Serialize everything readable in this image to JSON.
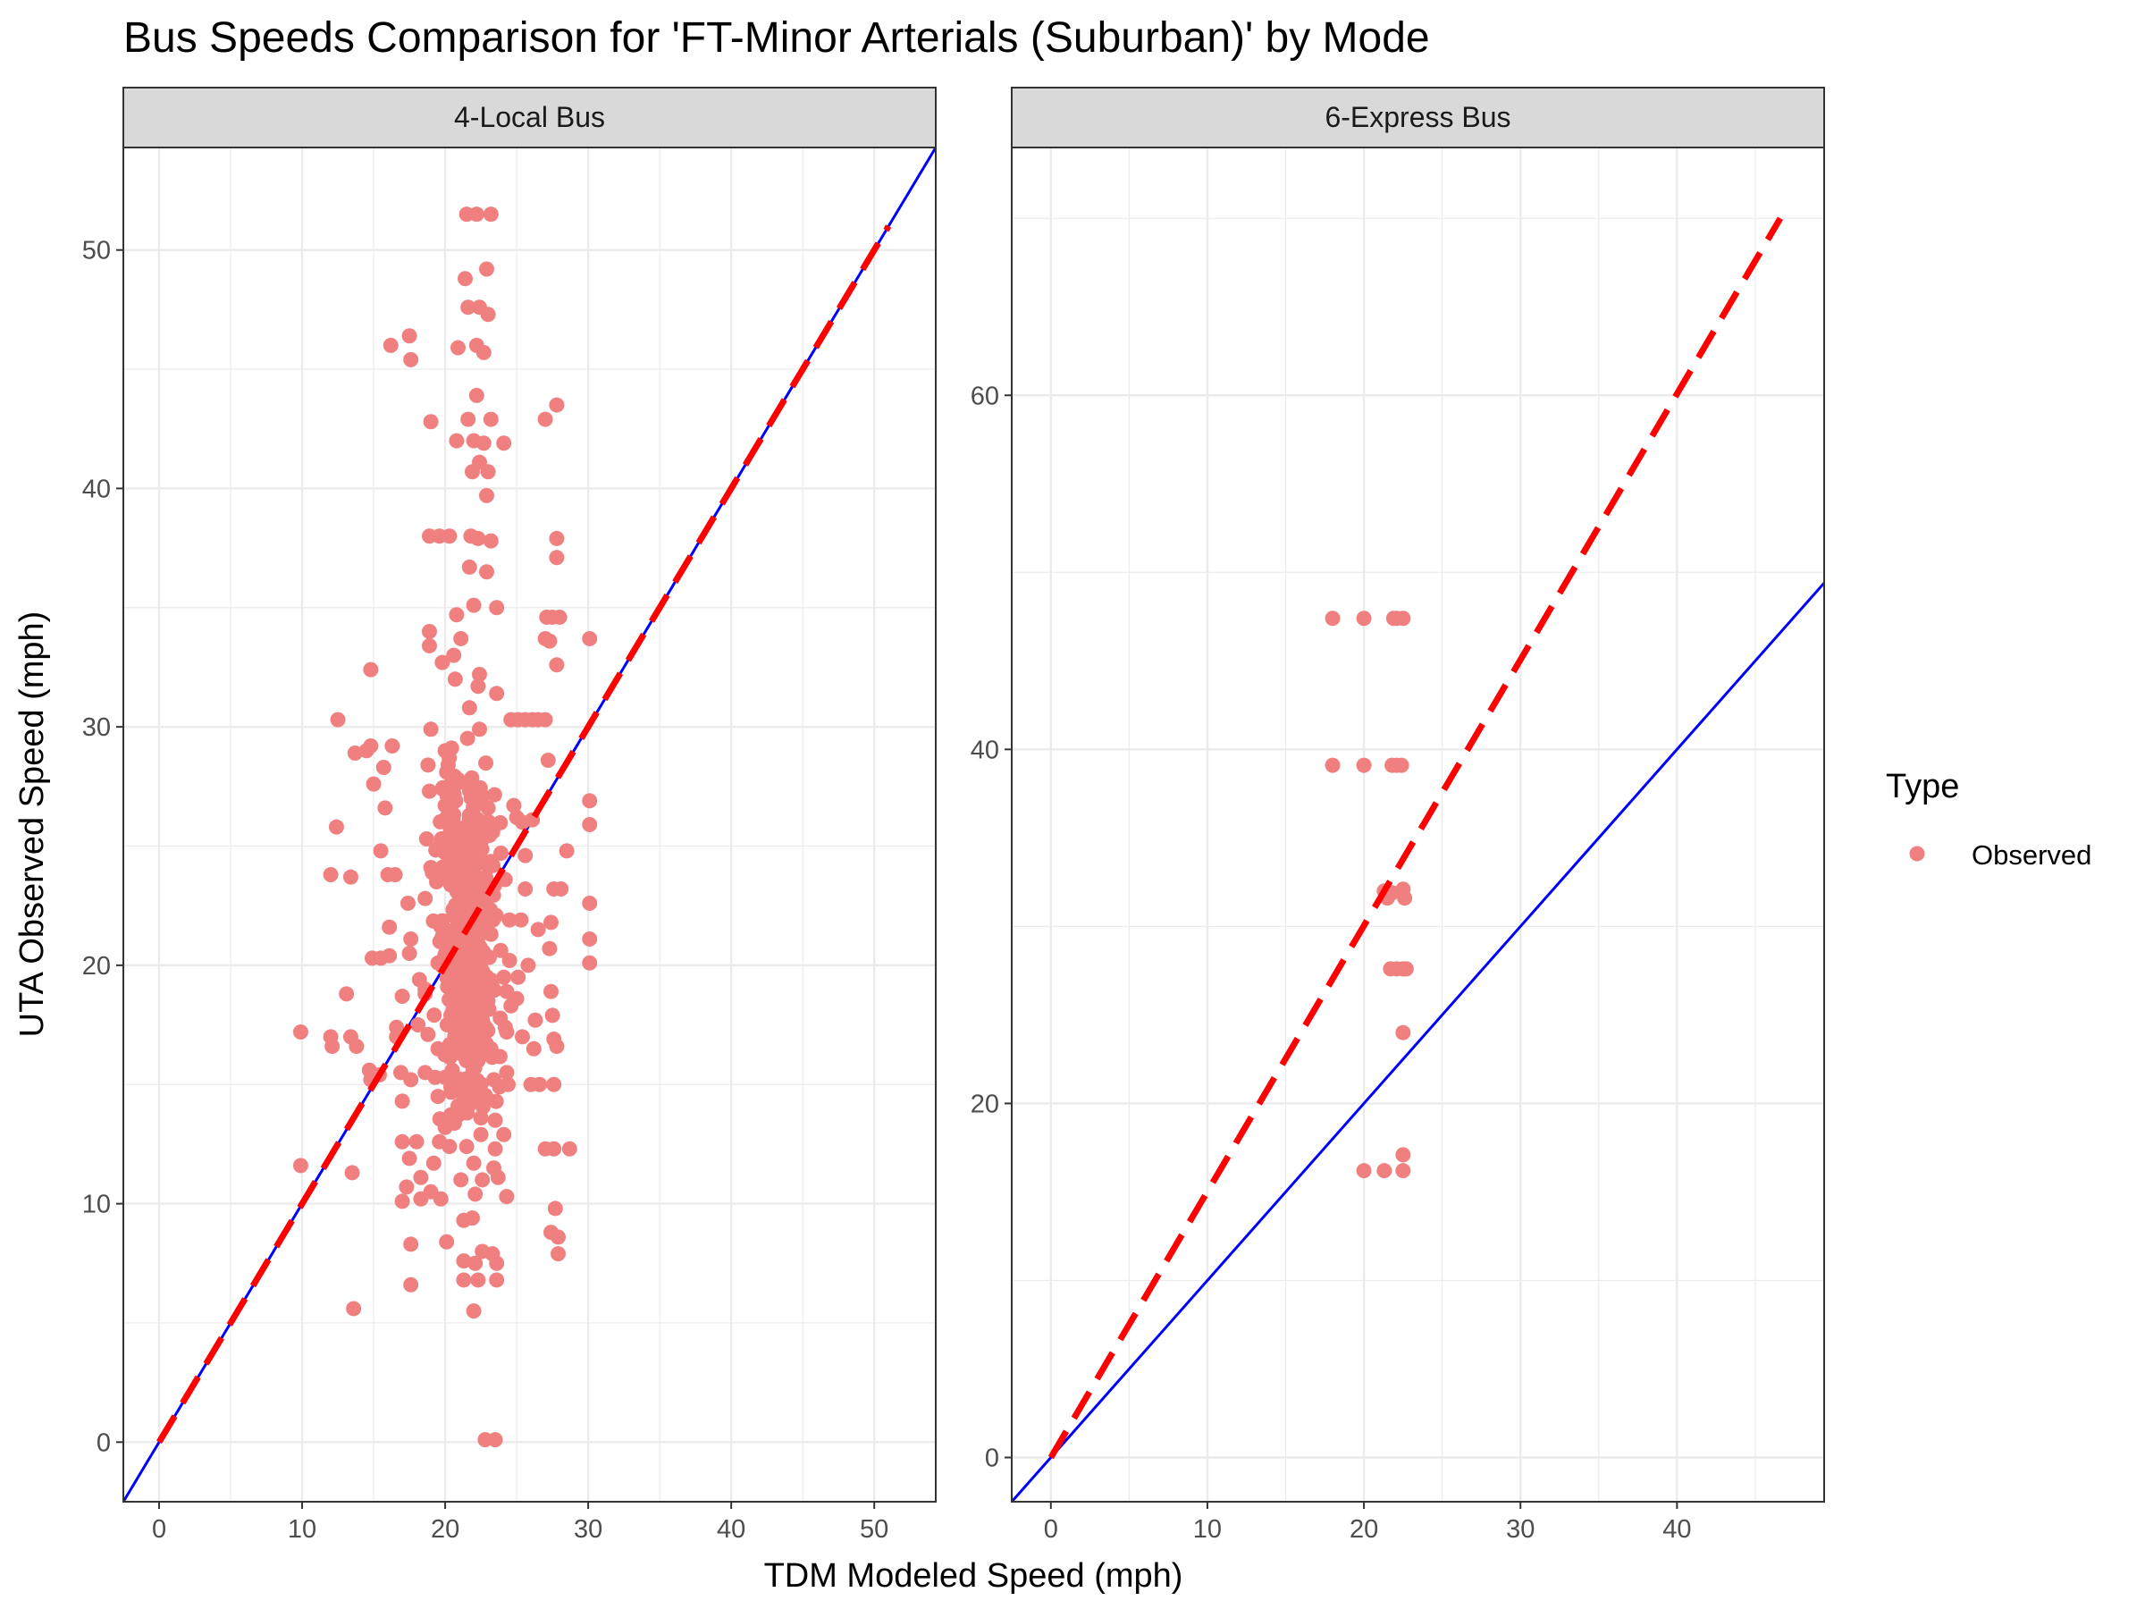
{
  "chart_data": {
    "type": "scatter",
    "title": "Bus Speeds Comparison for 'FT-Minor Arterials (Suburban)' by Mode",
    "xlabel": "TDM Modeled Speed (mph)",
    "ylabel": "UTA Observed Speed (mph)",
    "legend": {
      "title": "Type",
      "placement": "right",
      "entries": [
        "Observed"
      ]
    },
    "colors": {
      "point": "#F08080",
      "identity_line": "#0000FF",
      "fit_line": "#FF0000",
      "strip_bg": "#D9D9D9",
      "grid": "#EBEBEB",
      "panel_border": "#333333"
    },
    "grid": true,
    "panels": [
      {
        "strip": "4-Local Bus",
        "xlim": [
          -2.5,
          54.3
        ],
        "ylim": [
          -2.5,
          54.3
        ],
        "x_ticks": [
          0,
          10,
          20,
          30,
          40,
          50
        ],
        "x_tick_labels": [
          "0",
          "10",
          "20",
          "30",
          "40",
          "50"
        ],
        "y_ticks": [
          0,
          10,
          20,
          30,
          40,
          50
        ],
        "y_tick_labels": [
          "0",
          "10",
          "20",
          "30",
          "40",
          "50"
        ],
        "identity_line": {
          "x": [
            -2.5,
            54.3
          ],
          "y": [
            -2.5,
            54.3
          ]
        },
        "fit_line": {
          "x": [
            0,
            51
          ],
          "y": [
            0,
            51
          ]
        },
        "points": [
          [
            21.5,
            51.5
          ],
          [
            22.2,
            51.5
          ],
          [
            23.2,
            51.5
          ],
          [
            21.4,
            48.8
          ],
          [
            22.9,
            49.2
          ],
          [
            21.6,
            47.6
          ],
          [
            22.4,
            47.6
          ],
          [
            23.0,
            47.3
          ],
          [
            16.2,
            46.0
          ],
          [
            17.5,
            46.4
          ],
          [
            17.6,
            45.4
          ],
          [
            20.9,
            45.9
          ],
          [
            22.2,
            46.0
          ],
          [
            22.7,
            45.7
          ],
          [
            22.2,
            43.9
          ],
          [
            21.6,
            42.9
          ],
          [
            23.2,
            42.9
          ],
          [
            19.0,
            42.8
          ],
          [
            27.0,
            42.9
          ],
          [
            27.8,
            43.5
          ],
          [
            20.8,
            42.0
          ],
          [
            22.0,
            42.0
          ],
          [
            22.7,
            41.9
          ],
          [
            24.1,
            41.9
          ],
          [
            22.4,
            41.1
          ],
          [
            21.9,
            40.7
          ],
          [
            23.0,
            40.7
          ],
          [
            22.9,
            39.7
          ],
          [
            18.9,
            38.0
          ],
          [
            19.6,
            38.0
          ],
          [
            20.3,
            38.0
          ],
          [
            21.8,
            38.0
          ],
          [
            22.3,
            37.9
          ],
          [
            23.2,
            37.8
          ],
          [
            27.8,
            37.9
          ],
          [
            21.7,
            36.7
          ],
          [
            22.9,
            36.5
          ],
          [
            27.8,
            37.1
          ],
          [
            23.6,
            35.0
          ],
          [
            22.0,
            35.1
          ],
          [
            20.8,
            34.7
          ],
          [
            27.1,
            34.6
          ],
          [
            27.5,
            34.6
          ],
          [
            28.0,
            34.6
          ],
          [
            18.9,
            34.0
          ],
          [
            21.1,
            33.7
          ],
          [
            27.0,
            33.7
          ],
          [
            27.3,
            33.6
          ],
          [
            30.1,
            33.7
          ],
          [
            18.9,
            33.4
          ],
          [
            19.8,
            32.7
          ],
          [
            20.6,
            33.0
          ],
          [
            27.8,
            32.6
          ],
          [
            14.8,
            32.4
          ],
          [
            22.4,
            32.2
          ],
          [
            20.7,
            32.0
          ],
          [
            22.3,
            31.7
          ],
          [
            23.6,
            31.4
          ],
          [
            21.7,
            30.8
          ],
          [
            12.5,
            30.3
          ],
          [
            24.6,
            30.3
          ],
          [
            25.1,
            30.3
          ],
          [
            25.6,
            30.3
          ],
          [
            26.1,
            30.3
          ],
          [
            26.5,
            30.3
          ],
          [
            27.0,
            30.3
          ],
          [
            19.0,
            29.9
          ],
          [
            22.4,
            29.9
          ],
          [
            14.5,
            29.0
          ],
          [
            13.7,
            28.9
          ],
          [
            14.8,
            29.2
          ],
          [
            16.3,
            29.2
          ],
          [
            20.0,
            29.0
          ],
          [
            18.8,
            28.4
          ],
          [
            15.7,
            28.3
          ],
          [
            27.2,
            28.6
          ],
          [
            20.1,
            28.1
          ],
          [
            19.8,
            27.4
          ],
          [
            15.0,
            27.6
          ],
          [
            18.9,
            27.3
          ],
          [
            22.6,
            27.1
          ],
          [
            20.0,
            26.7
          ],
          [
            23.0,
            26.6
          ],
          [
            24.8,
            26.7
          ],
          [
            15.8,
            26.6
          ],
          [
            25.0,
            26.2
          ],
          [
            25.4,
            26.0
          ],
          [
            26.1,
            26.1
          ],
          [
            30.1,
            26.9
          ],
          [
            30.1,
            25.9
          ],
          [
            12.4,
            25.8
          ],
          [
            18.7,
            25.3
          ],
          [
            22.0,
            24.9
          ],
          [
            15.5,
            24.8
          ],
          [
            21.2,
            24.7
          ],
          [
            23.9,
            24.7
          ],
          [
            25.6,
            24.6
          ],
          [
            28.5,
            24.8
          ],
          [
            19.0,
            24.1
          ],
          [
            20.1,
            23.9
          ],
          [
            12.0,
            23.8
          ],
          [
            13.4,
            23.7
          ],
          [
            16.0,
            23.8
          ],
          [
            16.5,
            23.8
          ],
          [
            19.4,
            23.5
          ],
          [
            24.2,
            23.6
          ],
          [
            25.6,
            23.2
          ],
          [
            27.6,
            23.2
          ],
          [
            28.1,
            23.2
          ],
          [
            18.6,
            22.8
          ],
          [
            17.4,
            22.6
          ],
          [
            20.8,
            22.2
          ],
          [
            30.1,
            22.6
          ],
          [
            24.5,
            21.9
          ],
          [
            25.3,
            21.9
          ],
          [
            26.5,
            21.5
          ],
          [
            27.4,
            21.8
          ],
          [
            16.1,
            21.6
          ],
          [
            17.6,
            21.1
          ],
          [
            19.8,
            21.2
          ],
          [
            23.2,
            21.3
          ],
          [
            30.1,
            21.1
          ],
          [
            21.0,
            20.9
          ],
          [
            22.4,
            20.6
          ],
          [
            27.3,
            20.7
          ],
          [
            14.9,
            20.3
          ],
          [
            15.5,
            20.3
          ],
          [
            16.1,
            20.4
          ],
          [
            17.5,
            20.5
          ],
          [
            19.5,
            20.1
          ],
          [
            24.5,
            20.2
          ],
          [
            25.8,
            20.0
          ],
          [
            30.1,
            20.1
          ],
          [
            22.3,
            19.8
          ],
          [
            18.2,
            19.4
          ],
          [
            24.1,
            19.5
          ],
          [
            25.1,
            19.5
          ],
          [
            18.6,
            19.0
          ],
          [
            20.5,
            19.1
          ],
          [
            23.1,
            19.0
          ],
          [
            24.3,
            18.9
          ],
          [
            25.0,
            18.6
          ],
          [
            27.4,
            18.9
          ],
          [
            13.1,
            18.8
          ],
          [
            17.0,
            18.7
          ],
          [
            18.6,
            18.8
          ],
          [
            21.8,
            18.5
          ],
          [
            24.6,
            18.3
          ],
          [
            27.5,
            17.9
          ],
          [
            16.6,
            17.4
          ],
          [
            18.1,
            17.5
          ],
          [
            20.4,
            17.9
          ],
          [
            22.6,
            17.7
          ],
          [
            24.2,
            17.4
          ],
          [
            26.3,
            17.7
          ],
          [
            9.9,
            17.2
          ],
          [
            12.0,
            17.0
          ],
          [
            13.4,
            17.0
          ],
          [
            16.6,
            17.0
          ],
          [
            18.8,
            17.1
          ],
          [
            20.7,
            17.1
          ],
          [
            24.3,
            17.2
          ],
          [
            25.4,
            17.0
          ],
          [
            27.6,
            16.9
          ],
          [
            12.1,
            16.6
          ],
          [
            13.8,
            16.6
          ],
          [
            19.5,
            16.5
          ],
          [
            21.7,
            16.4
          ],
          [
            23.2,
            16.5
          ],
          [
            26.2,
            16.5
          ],
          [
            27.8,
            16.6
          ],
          [
            22.3,
            16.0
          ],
          [
            14.7,
            15.6
          ],
          [
            15.4,
            15.4
          ],
          [
            16.9,
            15.5
          ],
          [
            18.6,
            15.5
          ],
          [
            20.5,
            15.6
          ],
          [
            24.3,
            15.5
          ],
          [
            14.8,
            15.2
          ],
          [
            17.6,
            15.2
          ],
          [
            19.3,
            15.3
          ],
          [
            20.0,
            15.3
          ],
          [
            23.4,
            15.2
          ],
          [
            24.4,
            15.0
          ],
          [
            26.0,
            15.0
          ],
          [
            26.6,
            15.0
          ],
          [
            27.6,
            15.0
          ],
          [
            20.4,
            14.9
          ],
          [
            22.0,
            14.7
          ],
          [
            23.8,
            14.9
          ],
          [
            19.5,
            14.5
          ],
          [
            21.3,
            14.6
          ],
          [
            17.0,
            14.3
          ],
          [
            20.9,
            14.1
          ],
          [
            22.5,
            13.6
          ],
          [
            23.5,
            13.5
          ],
          [
            20.0,
            13.2
          ],
          [
            22.5,
            12.9
          ],
          [
            24.1,
            12.9
          ],
          [
            17.0,
            12.6
          ],
          [
            18.0,
            12.6
          ],
          [
            19.6,
            12.6
          ],
          [
            20.3,
            12.4
          ],
          [
            21.5,
            12.4
          ],
          [
            23.5,
            12.3
          ],
          [
            27.0,
            12.3
          ],
          [
            27.6,
            12.3
          ],
          [
            28.7,
            12.3
          ],
          [
            17.5,
            11.9
          ],
          [
            19.2,
            11.7
          ],
          [
            9.9,
            11.6
          ],
          [
            22.0,
            11.7
          ],
          [
            23.4,
            11.5
          ],
          [
            13.5,
            11.3
          ],
          [
            18.3,
            11.1
          ],
          [
            21.1,
            11.0
          ],
          [
            22.6,
            11.0
          ],
          [
            23.7,
            11.1
          ],
          [
            17.3,
            10.7
          ],
          [
            19.0,
            10.5
          ],
          [
            22.1,
            10.4
          ],
          [
            24.3,
            10.3
          ],
          [
            17.0,
            10.1
          ],
          [
            18.3,
            10.2
          ],
          [
            19.7,
            10.2
          ],
          [
            27.7,
            9.8
          ],
          [
            21.9,
            9.4
          ],
          [
            21.3,
            9.3
          ],
          [
            27.4,
            8.8
          ],
          [
            27.9,
            8.6
          ],
          [
            17.6,
            8.3
          ],
          [
            20.1,
            8.4
          ],
          [
            22.6,
            8.0
          ],
          [
            23.3,
            7.9
          ],
          [
            27.9,
            7.9
          ],
          [
            21.3,
            7.6
          ],
          [
            22.1,
            7.5
          ],
          [
            23.6,
            7.5
          ],
          [
            21.3,
            6.8
          ],
          [
            22.3,
            6.8
          ],
          [
            23.6,
            6.8
          ],
          [
            17.6,
            6.6
          ],
          [
            13.6,
            5.6
          ],
          [
            22.0,
            5.5
          ],
          [
            22.8,
            0.1
          ],
          [
            23.5,
            0.1
          ]
        ],
        "dense_core": {
          "x_range": [
            18.5,
            24.5
          ],
          "y_range": [
            12.5,
            30.0
          ]
        }
      },
      {
        "strip": "6-Express Bus",
        "xlim": [
          -2.5,
          49.4
        ],
        "ylim": [
          -2.5,
          74.0
        ],
        "x_ticks": [
          0,
          10,
          20,
          30,
          40
        ],
        "x_tick_labels": [
          "0",
          "10",
          "20",
          "30",
          "40"
        ],
        "y_ticks": [
          0,
          20,
          40,
          60
        ],
        "y_tick_labels": [
          "0",
          "20",
          "40",
          "60"
        ],
        "identity_line": {
          "x": [
            -2.5,
            49.4
          ],
          "y": [
            -2.5,
            49.4
          ]
        },
        "fit_line": {
          "x": [
            0,
            46.6
          ],
          "y": [
            0,
            70.0
          ]
        },
        "points": [
          [
            18.0,
            47.4
          ],
          [
            20.0,
            47.4
          ],
          [
            21.9,
            47.4
          ],
          [
            22.1,
            47.4
          ],
          [
            22.5,
            47.4
          ],
          [
            18.0,
            39.1
          ],
          [
            20.0,
            39.1
          ],
          [
            21.8,
            39.1
          ],
          [
            22.1,
            39.1
          ],
          [
            22.4,
            39.1
          ],
          [
            21.3,
            32.0
          ],
          [
            21.8,
            31.9
          ],
          [
            22.5,
            32.1
          ],
          [
            21.5,
            31.6
          ],
          [
            22.6,
            31.6
          ],
          [
            21.7,
            27.6
          ],
          [
            22.1,
            27.6
          ],
          [
            22.5,
            27.6
          ],
          [
            22.7,
            27.6
          ],
          [
            22.5,
            24.0
          ],
          [
            22.5,
            17.1
          ],
          [
            20.0,
            16.2
          ],
          [
            21.3,
            16.2
          ],
          [
            22.5,
            16.2
          ]
        ]
      }
    ]
  }
}
